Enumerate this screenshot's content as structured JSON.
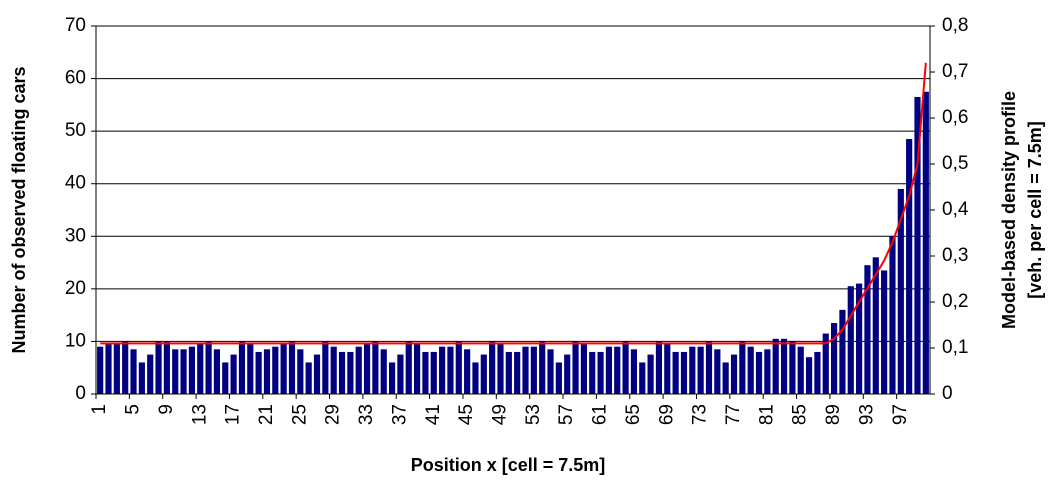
{
  "chart_data": {
    "type": "bar-line",
    "y_label": "Number of observed floating cars",
    "y2_label": [
      "Model-based density profile",
      "[veh. per cell = 7.5m]"
    ],
    "x_label": "Position x  [cell = 7.5m]",
    "categories": [
      1,
      null,
      null,
      null,
      5,
      null,
      null,
      null,
      9,
      null,
      null,
      null,
      13,
      null,
      null,
      null,
      17,
      null,
      null,
      null,
      21,
      null,
      null,
      null,
      25,
      null,
      null,
      null,
      29,
      null,
      null,
      null,
      33,
      null,
      null,
      null,
      37,
      null,
      null,
      null,
      41,
      null,
      null,
      null,
      45,
      null,
      null,
      null,
      49,
      null,
      null,
      null,
      53,
      null,
      null,
      null,
      57,
      null,
      null,
      null,
      61,
      null,
      null,
      null,
      65,
      null,
      null,
      null,
      69,
      null,
      null,
      null,
      73,
      null,
      null,
      null,
      77,
      null,
      null,
      null,
      81,
      null,
      null,
      null,
      85,
      null,
      null,
      null,
      89,
      null,
      null,
      null,
      93,
      null,
      null,
      null,
      97,
      null,
      null,
      null
    ],
    "series": [
      {
        "type": "bar",
        "color": "#000080",
        "values": [
          9,
          9.5,
          9.5,
          10,
          8.5,
          6,
          7.5,
          10,
          10,
          8.5,
          8.5,
          9,
          9.5,
          10,
          8.5,
          6,
          7.5,
          10,
          9.5,
          8,
          8.5,
          9,
          9.5,
          10,
          8.5,
          6,
          7.5,
          10,
          9,
          8,
          8,
          9,
          9.5,
          10,
          8.5,
          6,
          7.5,
          10,
          9.5,
          8,
          8,
          9,
          9,
          10,
          8.5,
          6,
          7.5,
          10,
          9.5,
          8,
          8,
          9,
          9,
          10,
          8.5,
          6,
          7.5,
          10,
          9.5,
          8,
          8,
          9,
          9,
          10,
          8.5,
          6,
          7.5,
          10,
          9.5,
          8,
          8,
          9,
          9,
          10,
          8.5,
          6,
          7.5,
          10,
          9,
          8,
          8.5,
          10.5,
          10.5,
          10,
          9,
          7,
          8,
          11.5,
          13.5,
          16,
          20.5,
          21,
          24.5,
          26,
          23.5,
          30,
          39,
          48.5,
          56.5,
          57.5
        ]
      },
      {
        "type": "line",
        "axis": "y2",
        "color": "#ff0000",
        "values": [
          0.11,
          0.11,
          0.11,
          0.11,
          0.11,
          0.11,
          0.11,
          0.11,
          0.11,
          0.11,
          0.11,
          0.11,
          0.11,
          0.11,
          0.11,
          0.11,
          0.11,
          0.11,
          0.11,
          0.11,
          0.11,
          0.11,
          0.11,
          0.11,
          0.11,
          0.11,
          0.11,
          0.11,
          0.11,
          0.11,
          0.11,
          0.11,
          0.11,
          0.11,
          0.11,
          0.11,
          0.11,
          0.11,
          0.11,
          0.11,
          0.11,
          0.11,
          0.11,
          0.11,
          0.11,
          0.11,
          0.11,
          0.11,
          0.11,
          0.11,
          0.11,
          0.11,
          0.11,
          0.11,
          0.11,
          0.11,
          0.11,
          0.11,
          0.11,
          0.11,
          0.11,
          0.11,
          0.11,
          0.11,
          0.11,
          0.11,
          0.11,
          0.11,
          0.11,
          0.11,
          0.11,
          0.11,
          0.11,
          0.11,
          0.11,
          0.11,
          0.11,
          0.11,
          0.11,
          0.11,
          0.11,
          0.11,
          0.11,
          0.11,
          0.11,
          0.11,
          0.11,
          0.11,
          0.12,
          0.14,
          0.17,
          0.2,
          0.23,
          0.26,
          0.29,
          0.33,
          0.38,
          0.43,
          0.5,
          0.72
        ]
      }
    ],
    "ylim": [
      0,
      70
    ],
    "yticks": [
      0,
      10,
      20,
      30,
      40,
      50,
      60,
      70
    ],
    "y2lim": [
      0,
      0.8
    ],
    "y2ticks": [
      0,
      {
        "value": 0.1,
        "label": "0,1"
      },
      {
        "value": 0.2,
        "label": "0,2"
      },
      {
        "value": 0.3,
        "label": "0,3"
      },
      {
        "value": 0.4,
        "label": "0,4"
      },
      {
        "value": 0.5,
        "label": "0,5"
      },
      {
        "value": 0.6,
        "label": "0,6"
      },
      {
        "value": 0.7,
        "label": "0,7"
      },
      {
        "value": 0.8,
        "label": "0,8"
      }
    ],
    "grid": true
  }
}
